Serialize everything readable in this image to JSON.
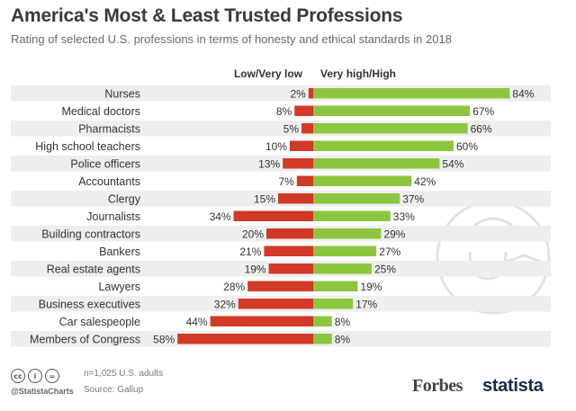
{
  "header": {
    "title": "America's Most & Least Trusted Professions",
    "subtitle": "Rating of selected U.S. professions in terms of honesty and ethical standards in 2018"
  },
  "footer": {
    "note": "n=1,025 U.S. adults",
    "source": "Source: Gallup",
    "handle": "@StatistaCharts",
    "brand_forbes": "Forbes",
    "brand_statista": "statista",
    "license_icons": [
      "cc-icon",
      "attribution-icon",
      "no-derivatives-icon"
    ]
  },
  "colors": {
    "low": "#d03a27",
    "high": "#8cc63f",
    "row_band": "#eeeeee",
    "watermark": "#e2e2e2"
  },
  "chart_data": {
    "type": "bar",
    "orientation": "horizontal-diverging",
    "categories": [
      "Nurses",
      "Medical doctors",
      "Pharmacists",
      "High school teachers",
      "Police officers",
      "Accountants",
      "Clergy",
      "Journalists",
      "Building contractors",
      "Bankers",
      "Real estate agents",
      "Lawyers",
      "Business executives",
      "Car salespeople",
      "Members of Congress"
    ],
    "series": [
      {
        "name": "Low/Very low",
        "values": [
          2,
          8,
          5,
          10,
          13,
          7,
          15,
          34,
          20,
          21,
          19,
          28,
          32,
          44,
          58
        ]
      },
      {
        "name": "Very high/High",
        "values": [
          84,
          67,
          66,
          60,
          54,
          42,
          37,
          33,
          29,
          27,
          25,
          19,
          17,
          8,
          8
        ]
      }
    ],
    "value_suffix": "%",
    "legend": "top",
    "grid": false
  }
}
